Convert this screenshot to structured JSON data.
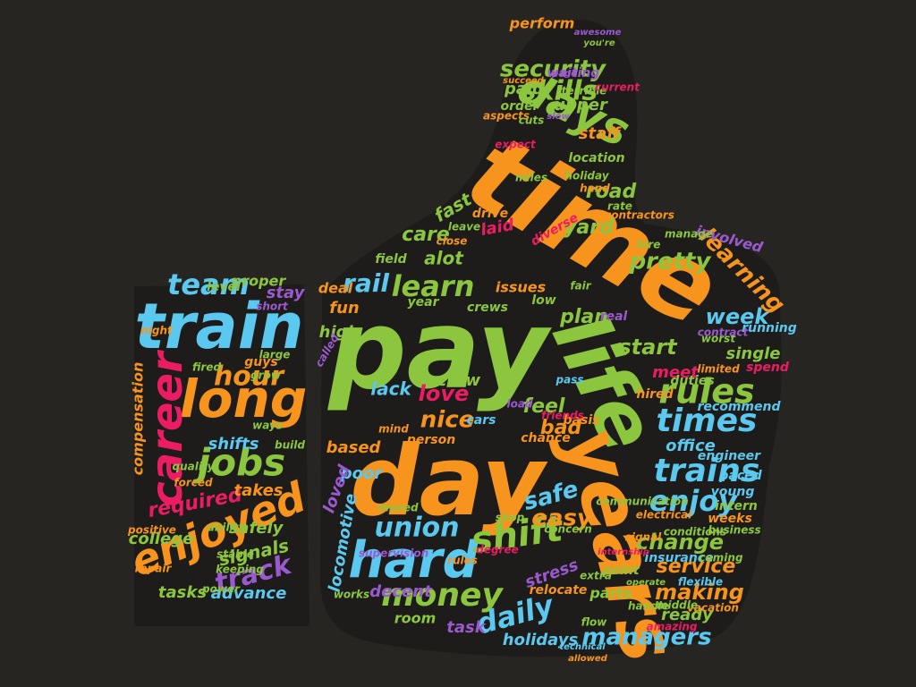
{
  "palette": {
    "background": "#262522",
    "orange": "#f7941d",
    "green": "#8cc63f",
    "blue": "#5bc8ef",
    "pink": "#ec1c64",
    "purple": "#9b59d0"
  },
  "words": [
    {
      "id": "time",
      "text": "time",
      "color": "orange"
    },
    {
      "id": "pay",
      "text": "pay",
      "color": "green"
    },
    {
      "id": "day",
      "text": "day",
      "color": "orange"
    },
    {
      "id": "life",
      "text": "life",
      "color": "green"
    },
    {
      "id": "years",
      "text": "years",
      "color": "orange"
    },
    {
      "id": "train",
      "text": "train",
      "color": "blue"
    },
    {
      "id": "long",
      "text": "long",
      "color": "orange"
    },
    {
      "id": "hard",
      "text": "hard",
      "color": "blue"
    },
    {
      "id": "enjoyed",
      "text": "enjoyed",
      "color": "orange"
    },
    {
      "id": "career",
      "text": "career",
      "color": "pink"
    },
    {
      "id": "jobs",
      "text": "jobs",
      "color": "green"
    },
    {
      "id": "days",
      "text": "days",
      "color": "green"
    },
    {
      "id": "shift",
      "text": "shift",
      "color": "green"
    },
    {
      "id": "money",
      "text": "money",
      "color": "green"
    },
    {
      "id": "rules",
      "text": "rules",
      "color": "green"
    },
    {
      "id": "times",
      "text": "times",
      "color": "blue"
    },
    {
      "id": "trains",
      "text": "trains",
      "color": "blue"
    },
    {
      "id": "learn",
      "text": "learn",
      "color": "green"
    },
    {
      "id": "union",
      "text": "union",
      "color": "blue"
    },
    {
      "id": "daily",
      "text": "daily",
      "color": "blue"
    },
    {
      "id": "team",
      "text": "team",
      "color": "blue"
    },
    {
      "id": "hour",
      "text": "hour",
      "color": "orange"
    },
    {
      "id": "skills",
      "text": "skills",
      "color": "green"
    },
    {
      "id": "security",
      "text": "security",
      "color": "green"
    },
    {
      "id": "enjoy",
      "text": "enjoy",
      "color": "blue"
    },
    {
      "id": "track",
      "text": "track",
      "color": "purple"
    },
    {
      "id": "learning",
      "text": "learning",
      "color": "orange"
    },
    {
      "id": "safe",
      "text": "safe",
      "color": "blue"
    },
    {
      "id": "easy",
      "text": "easy",
      "color": "orange"
    },
    {
      "id": "love",
      "text": "love",
      "color": "pink"
    },
    {
      "id": "nice",
      "text": "nice",
      "color": "orange"
    },
    {
      "id": "rail",
      "text": "rail",
      "color": "blue"
    },
    {
      "id": "managers",
      "text": "managers",
      "color": "blue"
    },
    {
      "id": "service",
      "text": "service",
      "color": "orange"
    },
    {
      "id": "change",
      "text": "change",
      "color": "green"
    },
    {
      "id": "making",
      "text": "making",
      "color": "orange"
    },
    {
      "id": "required",
      "text": "required",
      "color": "pink"
    },
    {
      "id": "week",
      "text": "week",
      "color": "blue"
    },
    {
      "id": "start",
      "text": "start",
      "color": "green"
    },
    {
      "id": "road",
      "text": "road",
      "color": "green"
    },
    {
      "id": "yard",
      "text": "yard",
      "color": "green"
    },
    {
      "id": "pretty",
      "text": "pretty",
      "color": "green"
    },
    {
      "id": "plan",
      "text": "plan",
      "color": "green"
    },
    {
      "id": "bad",
      "text": "bad",
      "color": "orange"
    },
    {
      "id": "feel",
      "text": "feel",
      "color": "green"
    },
    {
      "id": "paid",
      "text": "paid",
      "color": "green"
    },
    {
      "id": "staff",
      "text": "staff",
      "color": "orange"
    },
    {
      "id": "upper",
      "text": "upper",
      "color": "green"
    },
    {
      "id": "care",
      "text": "care",
      "color": "green"
    },
    {
      "id": "alot",
      "text": "alot",
      "color": "green"
    },
    {
      "id": "stress",
      "text": "stress",
      "color": "purple"
    },
    {
      "id": "signals",
      "text": "signals",
      "color": "green"
    },
    {
      "id": "advance",
      "text": "advance",
      "color": "blue"
    },
    {
      "id": "tasks",
      "text": "tasks",
      "color": "green"
    },
    {
      "id": "shifts",
      "text": "shifts",
      "color": "blue"
    },
    {
      "id": "takes",
      "text": "takes",
      "color": "orange"
    },
    {
      "id": "safely",
      "text": "safely",
      "color": "green"
    },
    {
      "id": "college",
      "text": "college",
      "color": "green"
    },
    {
      "id": "office",
      "text": "office",
      "color": "blue"
    },
    {
      "id": "single",
      "text": "single",
      "color": "green"
    },
    {
      "id": "meet",
      "text": "meet",
      "color": "pink"
    },
    {
      "id": "ready",
      "text": "ready",
      "color": "green"
    },
    {
      "id": "perform",
      "text": "perform",
      "color": "orange"
    },
    {
      "id": "locomotive",
      "text": "locomotive",
      "color": "blue"
    },
    {
      "id": "compensation",
      "text": "compensation",
      "color": "orange"
    },
    {
      "id": "holidays",
      "text": "holidays",
      "color": "blue"
    },
    {
      "id": "task",
      "text": "task",
      "color": "purple"
    },
    {
      "id": "room",
      "text": "room",
      "color": "green"
    },
    {
      "id": "decent",
      "text": "decent",
      "color": "purple"
    },
    {
      "id": "parts",
      "text": "parts",
      "color": "green"
    },
    {
      "id": "insurance",
      "text": "insurance",
      "color": "blue"
    },
    {
      "id": "lack",
      "text": "lack",
      "color": "blue"
    },
    {
      "id": "crew",
      "text": "crew",
      "color": "green"
    },
    {
      "id": "based",
      "text": "based",
      "color": "orange"
    },
    {
      "id": "poor",
      "text": "poor",
      "color": "blue"
    },
    {
      "id": "high",
      "text": "high",
      "color": "green"
    },
    {
      "id": "fun",
      "text": "fun",
      "color": "orange"
    },
    {
      "id": "issues",
      "text": "issues",
      "color": "orange"
    },
    {
      "id": "recommend",
      "text": "recommend",
      "color": "blue"
    },
    {
      "id": "stay",
      "text": "stay",
      "color": "purple"
    },
    {
      "id": "proper",
      "text": "proper",
      "color": "green"
    },
    {
      "id": "level",
      "text": "level",
      "color": "green"
    },
    {
      "id": "laid",
      "text": "laid",
      "color": "pink"
    },
    {
      "id": "drive",
      "text": "drive",
      "color": "orange"
    },
    {
      "id": "fast",
      "text": "fast",
      "color": "green"
    },
    {
      "id": "running",
      "text": "running",
      "color": "blue"
    },
    {
      "id": "involved",
      "text": "involved",
      "color": "purple"
    },
    {
      "id": "young",
      "text": "young",
      "color": "blue"
    },
    {
      "id": "weeks",
      "text": "weeks",
      "color": "orange"
    },
    {
      "id": "intern",
      "text": "intern",
      "color": "green"
    },
    {
      "id": "engineer",
      "text": "engineer",
      "color": "blue"
    },
    {
      "id": "paced",
      "text": "paced",
      "color": "blue"
    },
    {
      "id": "flexible",
      "text": "flexible",
      "color": "blue"
    },
    {
      "id": "vacation",
      "text": "vacation",
      "color": "orange"
    },
    {
      "id": "keeping",
      "text": "keeping",
      "color": "green"
    },
    {
      "id": "stable",
      "text": "stable",
      "color": "green"
    },
    {
      "id": "repair",
      "text": "repair",
      "color": "orange"
    },
    {
      "id": "power",
      "text": "power",
      "color": "green"
    },
    {
      "id": "ability",
      "text": "ability",
      "color": "green"
    },
    {
      "id": "fired",
      "text": "fired",
      "color": "green"
    },
    {
      "id": "grow",
      "text": "grow",
      "color": "green"
    },
    {
      "id": "night",
      "text": "night",
      "color": "orange"
    },
    {
      "id": "guys",
      "text": "guys",
      "color": "orange"
    },
    {
      "id": "waiting",
      "text": "waiting",
      "color": "purple"
    },
    {
      "id": "location",
      "text": "location",
      "color": "green"
    },
    {
      "id": "hand",
      "text": "hand",
      "color": "orange"
    },
    {
      "id": "miles",
      "text": "miles",
      "color": "green"
    },
    {
      "id": "real",
      "text": "real",
      "color": "purple"
    },
    {
      "id": "low",
      "text": "low",
      "color": "green"
    },
    {
      "id": "year",
      "text": "year",
      "color": "green"
    },
    {
      "id": "deal",
      "text": "deal",
      "color": "orange"
    },
    {
      "id": "field",
      "text": "field",
      "color": "green"
    },
    {
      "id": "loved",
      "text": "loved",
      "color": "purple"
    },
    {
      "id": "called",
      "text": "called",
      "color": "purple"
    },
    {
      "id": "hired",
      "text": "hired",
      "color": "orange"
    },
    {
      "id": "duties",
      "text": "duties",
      "color": "green"
    },
    {
      "id": "spend",
      "text": "spend",
      "color": "pink"
    },
    {
      "id": "cars",
      "text": "cars",
      "color": "blue"
    },
    {
      "id": "car",
      "text": "car",
      "color": "green"
    },
    {
      "id": "crews",
      "text": "crews",
      "color": "green"
    },
    {
      "id": "hire",
      "text": "hire",
      "color": "green"
    },
    {
      "id": "manage",
      "text": "manage",
      "color": "green"
    },
    {
      "id": "terrible",
      "text": "terrible",
      "color": "green"
    },
    {
      "id": "current",
      "text": "current",
      "color": "pink"
    },
    {
      "id": "aspects",
      "text": "aspects",
      "color": "orange"
    },
    {
      "id": "order",
      "text": "order",
      "color": "green"
    },
    {
      "id": "diverse",
      "text": "diverse",
      "color": "pink"
    },
    {
      "id": "relocate",
      "text": "relocate",
      "color": "orange"
    },
    {
      "id": "point",
      "text": "point",
      "color": "green"
    },
    {
      "id": "chance",
      "text": "chance",
      "color": "orange"
    },
    {
      "id": "basis",
      "text": "basis",
      "color": "orange"
    },
    {
      "id": "person",
      "text": "person",
      "color": "orange"
    },
    {
      "id": "mind",
      "text": "mind",
      "color": "orange"
    },
    {
      "id": "moved",
      "text": "moved",
      "color": "green"
    },
    {
      "id": "works",
      "text": "works",
      "color": "green"
    },
    {
      "id": "supervision",
      "text": "supervision",
      "color": "purple"
    },
    {
      "id": "degree",
      "text": "degree",
      "color": "pink"
    },
    {
      "id": "shop",
      "text": "shop",
      "color": "green"
    },
    {
      "id": "middle",
      "text": "middle",
      "color": "green"
    },
    {
      "id": "amazing",
      "text": "amazing",
      "color": "pink"
    },
    {
      "id": "handle",
      "text": "handle",
      "color": "green"
    },
    {
      "id": "conditions",
      "text": "conditions",
      "color": "green"
    },
    {
      "id": "business",
      "text": "business",
      "color": "green"
    },
    {
      "id": "coming",
      "text": "coming",
      "color": "green"
    },
    {
      "id": "signal",
      "text": "signal",
      "color": "orange"
    },
    {
      "id": "electrical",
      "text": "electrical",
      "color": "orange"
    },
    {
      "id": "communication",
      "text": "communication",
      "color": "green"
    },
    {
      "id": "concern",
      "text": "concern",
      "color": "green"
    },
    {
      "id": "worst",
      "text": "worst",
      "color": "green"
    },
    {
      "id": "limited",
      "text": "limited",
      "color": "orange"
    },
    {
      "id": "contract",
      "text": "contract",
      "color": "purple"
    },
    {
      "id": "positive",
      "text": "positive",
      "color": "orange"
    },
    {
      "id": "quality",
      "text": "quality",
      "color": "green"
    },
    {
      "id": "forced",
      "text": "forced",
      "color": "orange"
    },
    {
      "id": "large",
      "text": "large",
      "color": "green"
    },
    {
      "id": "ways",
      "text": "ways",
      "color": "green"
    },
    {
      "id": "build",
      "text": "build",
      "color": "green"
    },
    {
      "id": "short",
      "text": "short",
      "color": "purple"
    },
    {
      "id": "awesome",
      "text": "awesome",
      "color": "purple"
    },
    {
      "id": "page",
      "text": "page",
      "color": "purple"
    },
    {
      "id": "you_re",
      "text": "you're",
      "color": "green"
    },
    {
      "id": "succeed",
      "text": "succeed",
      "color": "orange"
    },
    {
      "id": "cuts",
      "text": "cuts",
      "color": "green"
    },
    {
      "id": "slow",
      "text": "slow",
      "color": "purple"
    },
    {
      "id": "holiday",
      "text": "holiday",
      "color": "green"
    },
    {
      "id": "expect",
      "text": "expect",
      "color": "pink"
    },
    {
      "id": "leave",
      "text": "leave",
      "color": "green"
    },
    {
      "id": "close",
      "text": "close",
      "color": "orange"
    },
    {
      "id": "rate",
      "text": "rate",
      "color": "green"
    },
    {
      "id": "contractors",
      "text": "contractors",
      "color": "orange"
    },
    {
      "id": "fair",
      "text": "fair",
      "color": "green"
    },
    {
      "id": "friends",
      "text": "friends",
      "color": "pink"
    },
    {
      "id": "pass",
      "text": "pass",
      "color": "blue"
    },
    {
      "id": "technical",
      "text": "technical",
      "color": "blue"
    },
    {
      "id": "allowed",
      "text": "allowed",
      "color": "orange"
    },
    {
      "id": "operate",
      "text": "operate",
      "color": "green"
    },
    {
      "id": "internship",
      "text": "internship",
      "color": "pink"
    },
    {
      "id": "flow",
      "text": "flow",
      "color": "green"
    },
    {
      "id": "extra",
      "text": "extra",
      "color": "green"
    },
    {
      "id": "rules2",
      "text": "rules",
      "color": "orange"
    },
    {
      "id": "load",
      "text": "load",
      "color": "purple"
    }
  ]
}
